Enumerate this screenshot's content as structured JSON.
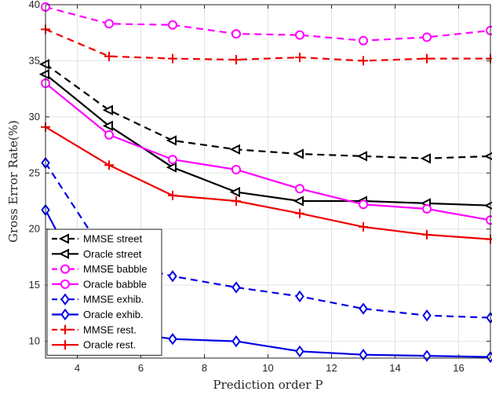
{
  "chart_data": {
    "type": "line",
    "title": "",
    "xlabel": "Prediction order P",
    "ylabel": "Gross Error Rate(%)",
    "xlim": [
      3,
      17
    ],
    "ylim": [
      8.5,
      40
    ],
    "xticks": [
      4,
      6,
      8,
      10,
      12,
      14,
      16
    ],
    "yticks": [
      10,
      15,
      20,
      25,
      30,
      35,
      40
    ],
    "grid": true,
    "legend_position": "bottom-left",
    "x": [
      3,
      5,
      7,
      9,
      11,
      13,
      15,
      17
    ],
    "series": [
      {
        "name": "MMSE street",
        "color": "#000000",
        "dash": "dashed",
        "marker": "triangle-left",
        "values": [
          34.7,
          30.6,
          27.9,
          27.1,
          26.7,
          26.5,
          26.3,
          26.5
        ]
      },
      {
        "name": "Oracle street",
        "color": "#000000",
        "dash": "solid",
        "marker": "triangle-left",
        "values": [
          33.8,
          29.2,
          25.5,
          23.3,
          22.5,
          22.5,
          22.3,
          22.1
        ]
      },
      {
        "name": "MMSE babble",
        "color": "#ff00ff",
        "dash": "dashed",
        "marker": "circle",
        "values": [
          39.8,
          38.3,
          38.2,
          37.4,
          37.3,
          36.8,
          37.1,
          37.7
        ]
      },
      {
        "name": "Oracle babble",
        "color": "#ff00ff",
        "dash": "solid",
        "marker": "circle",
        "values": [
          33.0,
          28.4,
          26.2,
          25.3,
          23.6,
          22.2,
          21.8,
          20.8
        ]
      },
      {
        "name": "MMSE exhib.",
        "color": "#0000e6",
        "dash": "dashed",
        "marker": "diamond",
        "values": [
          25.9,
          17.2,
          15.8,
          14.8,
          14.0,
          12.9,
          12.3,
          12.1
        ]
      },
      {
        "name": "Oracle exhib.",
        "color": "#0000e6",
        "dash": "solid",
        "marker": "diamond",
        "values": [
          21.7,
          11.0,
          10.2,
          10.0,
          9.1,
          8.8,
          8.7,
          8.6
        ]
      },
      {
        "name": "MMSE rest.",
        "color": "#ee0000",
        "dash": "dashed",
        "marker": "plus",
        "values": [
          37.8,
          35.4,
          35.2,
          35.1,
          35.3,
          35.0,
          35.2,
          35.2
        ]
      },
      {
        "name": "Oracle rest.",
        "color": "#ee0000",
        "dash": "solid",
        "marker": "plus",
        "values": [
          29.1,
          25.7,
          23.0,
          22.5,
          21.4,
          20.2,
          19.5,
          19.1
        ]
      }
    ]
  }
}
